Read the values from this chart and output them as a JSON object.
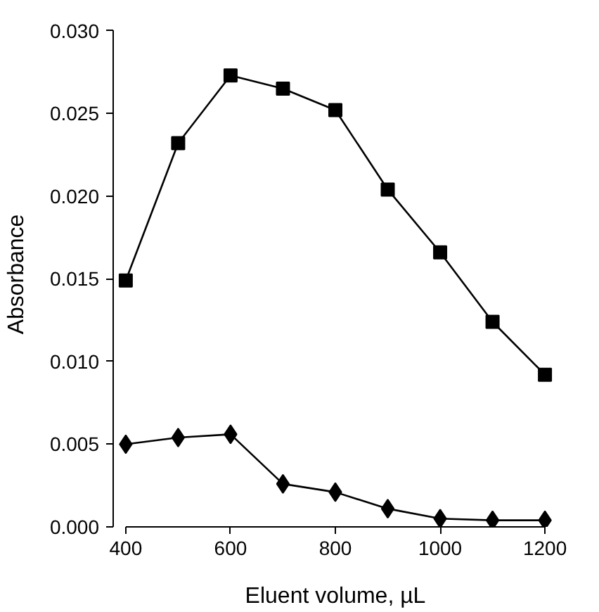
{
  "chart_data": {
    "type": "line",
    "xlabel": "Eluent volume, µL",
    "ylabel": "Absorbance",
    "x": [
      400,
      500,
      600,
      700,
      800,
      900,
      1000,
      1100,
      1200
    ],
    "series": [
      {
        "color": "#000000",
        "marker": "square",
        "values": [
          0.0149,
          0.0232,
          0.0273,
          0.0265,
          0.0252,
          0.0204,
          0.0166,
          0.0124,
          0.0092
        ]
      },
      {
        "color": "#000000",
        "marker": "diamond",
        "values": [
          0.005,
          0.0054,
          0.0056,
          0.0026,
          0.0021,
          0.0011,
          0.0005,
          0.0004,
          0.0004
        ]
      }
    ],
    "xlim": [
      400,
      1200
    ],
    "xticks": [
      400,
      600,
      800,
      1000,
      1200
    ],
    "ylim": [
      0,
      0.03
    ],
    "yticks": [
      {
        "value": 0,
        "label": "0.000"
      },
      {
        "value": 0.005,
        "label": "0.005"
      },
      {
        "value": 0.01,
        "label": "0.010"
      },
      {
        "value": 0.015,
        "label": "0.015"
      },
      {
        "value": 0.02,
        "label": "0.020"
      },
      {
        "value": 0.025,
        "label": "0.025"
      },
      {
        "value": 0.03,
        "label": "0.030"
      }
    ],
    "grid": false,
    "line_style": "solid"
  }
}
